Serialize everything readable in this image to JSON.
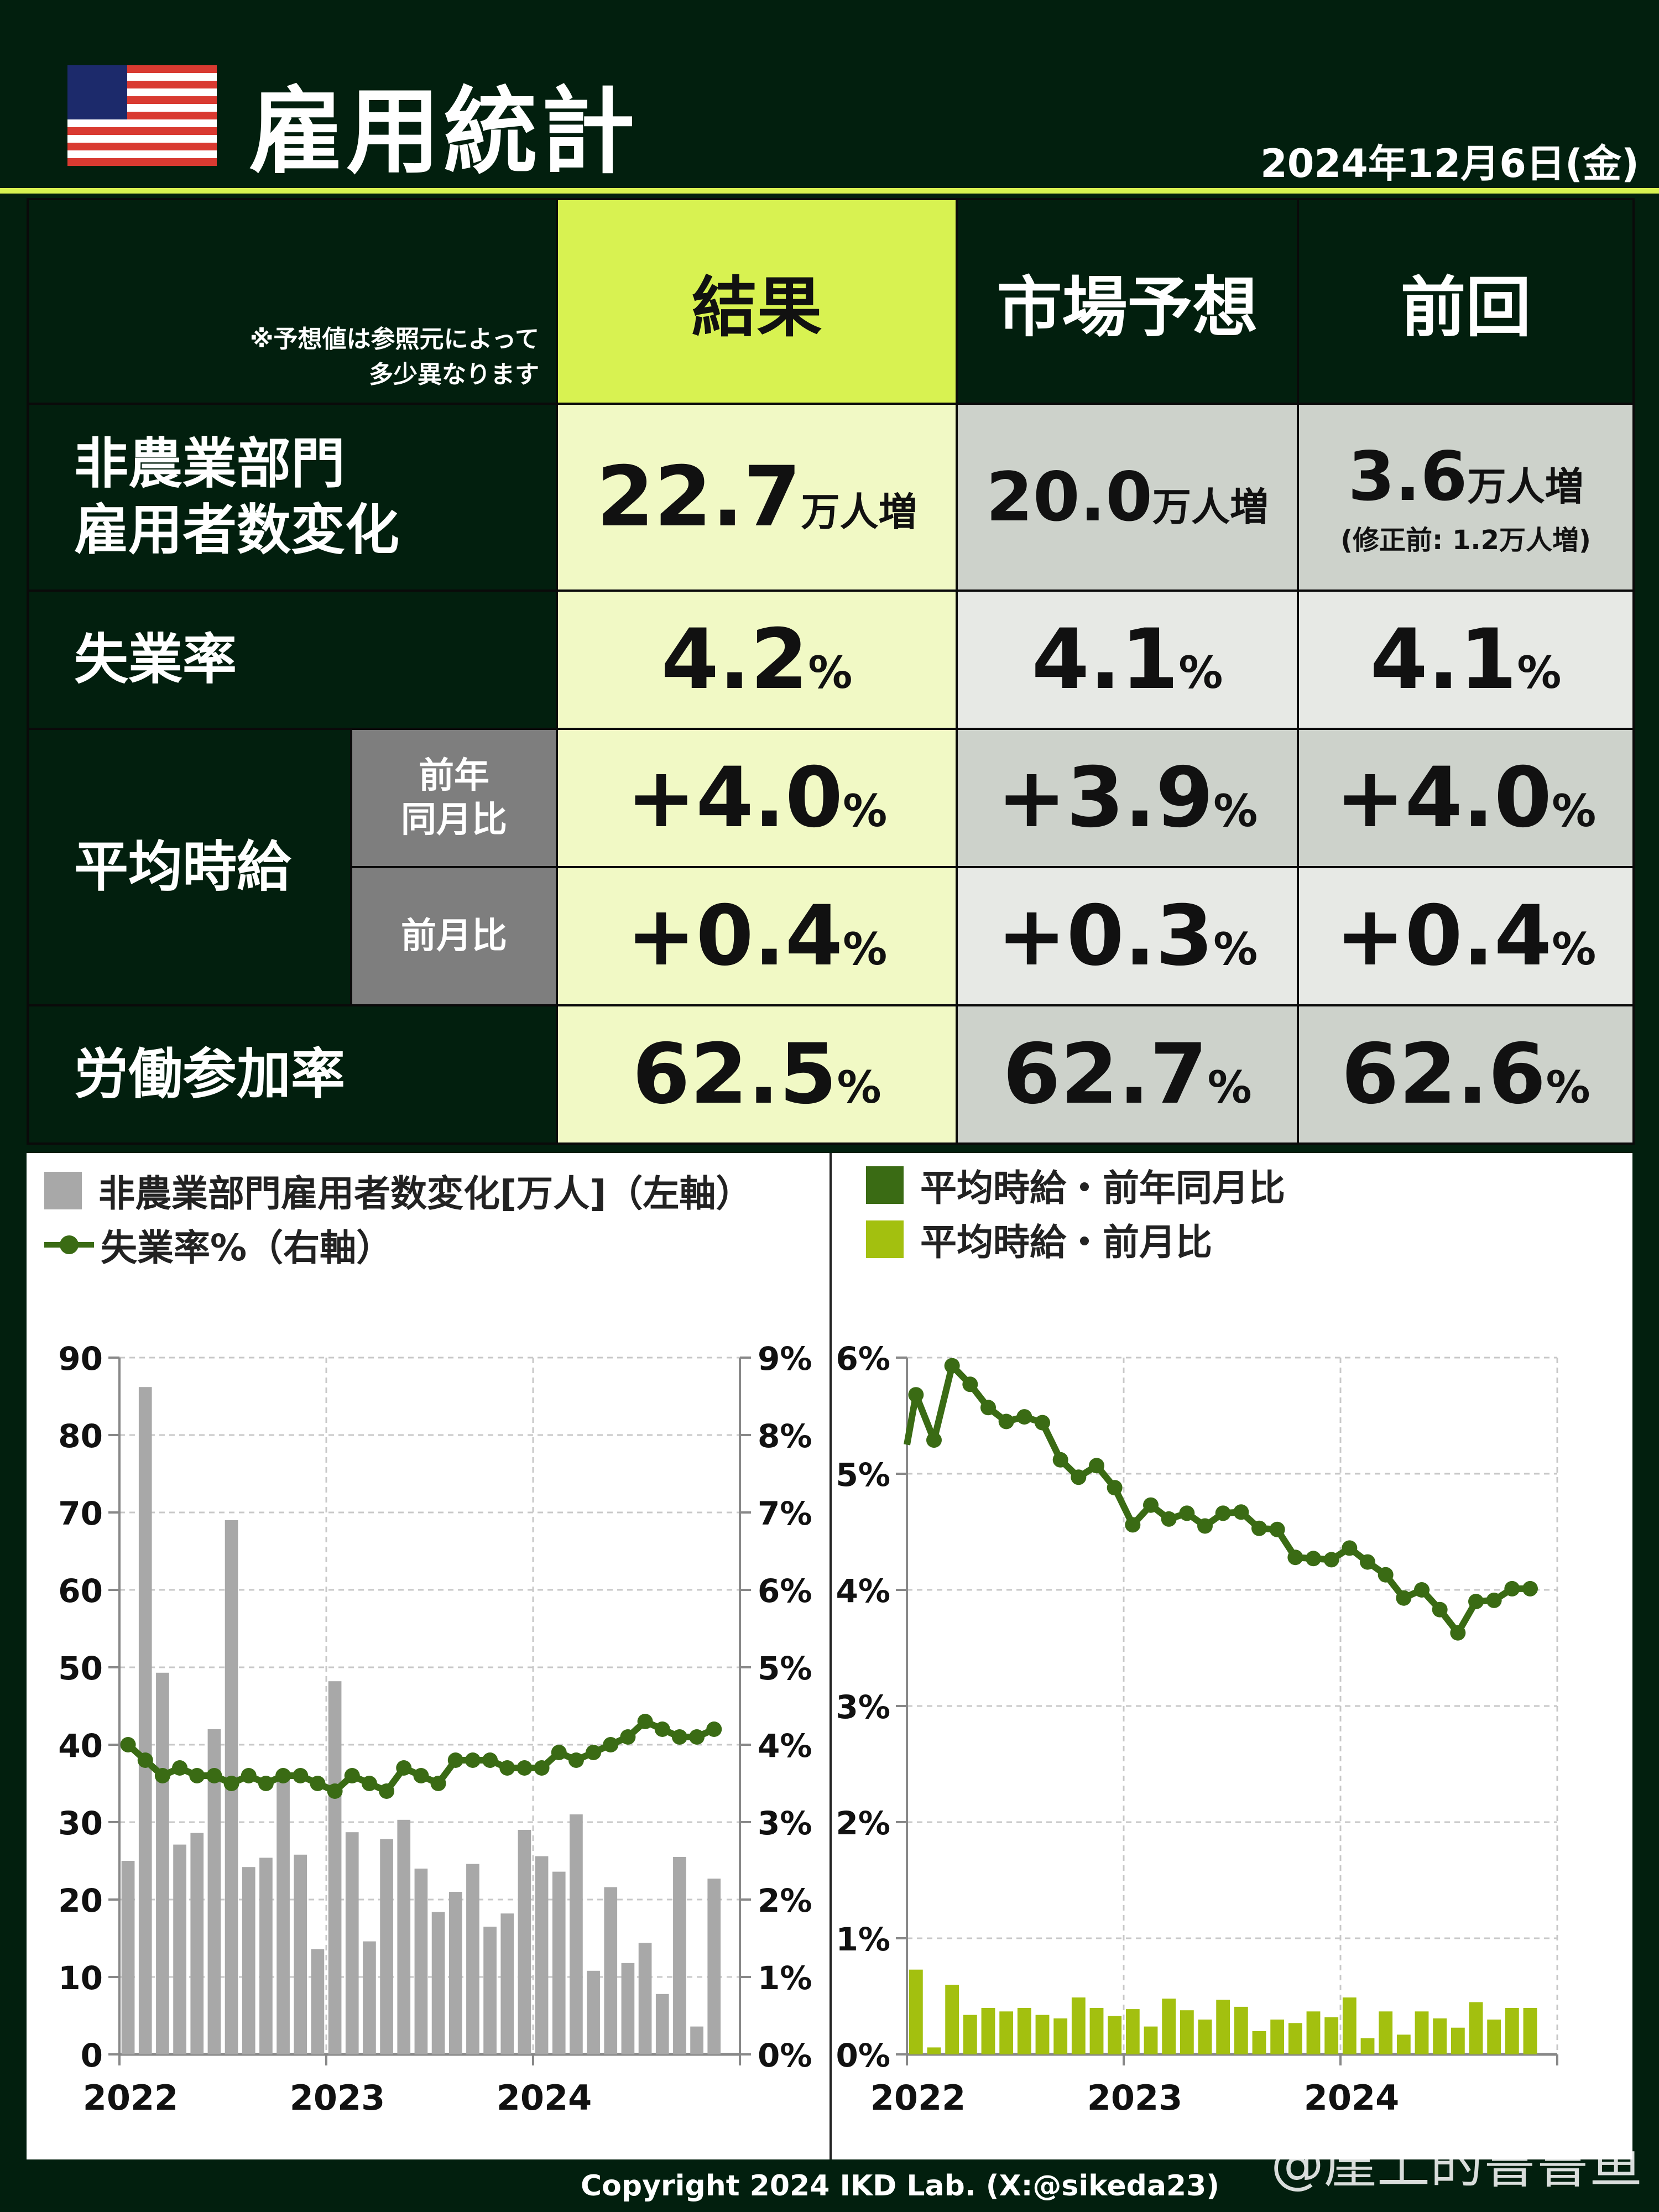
{
  "header": {
    "title": "雇用統計",
    "date": "2024年12月6日(金)",
    "flag": "us-flag-icon"
  },
  "table": {
    "note_line1": "※予想値は参照元によって",
    "note_line2": "多少異なります",
    "columns": [
      "結果",
      "市場予想",
      "前回"
    ],
    "rows": {
      "nfp": {
        "label_line1": "非農業部門",
        "label_line2": "雇用者数変化",
        "result": {
          "value": "22.7",
          "unit": "万人増"
        },
        "forecast": {
          "value": "20.0",
          "unit": "万人増"
        },
        "previous": {
          "value": "3.6",
          "unit": "万人増",
          "revision": "(修正前: 1.2万人増)"
        }
      },
      "unemployment": {
        "label": "失業率",
        "result": {
          "value": "4.2",
          "unit": "%"
        },
        "forecast": {
          "value": "4.1",
          "unit": "%"
        },
        "previous": {
          "value": "4.1",
          "unit": "%"
        }
      },
      "earnings": {
        "label": "平均時給",
        "yoy": {
          "label_line1": "前年",
          "label_line2": "同月比",
          "result": {
            "value": "+4.0",
            "unit": "%"
          },
          "forecast": {
            "value": "+3.9",
            "unit": "%"
          },
          "previous": {
            "value": "+4.0",
            "unit": "%"
          }
        },
        "mom": {
          "label": "前月比",
          "result": {
            "value": "+0.4",
            "unit": "%"
          },
          "forecast": {
            "value": "+0.3",
            "unit": "%"
          },
          "previous": {
            "value": "+0.4",
            "unit": "%"
          }
        }
      },
      "participation": {
        "label": "労働参加率",
        "result": {
          "value": "62.5",
          "unit": "%"
        },
        "forecast": {
          "value": "62.7",
          "unit": "%"
        },
        "previous": {
          "value": "62.6",
          "unit": "%"
        }
      }
    }
  },
  "colors": {
    "background": "#021f0e",
    "accent": "#d8f251",
    "result_cell": "#f1f9c5",
    "gray_cell": "#cdd2cb",
    "light_cell": "#e7e9e5",
    "bar_gray": "#a8a8a8",
    "line_green": "#3a6b14",
    "bar_lime": "#a3c00f"
  },
  "chart_data": [
    {
      "type": "bar+line",
      "title": "",
      "legend": [
        {
          "label": "非農業部門雇用者数変化[万人]（左軸）",
          "marker": "square",
          "color": "#a8a8a8"
        },
        {
          "label": "失業率%（右軸）",
          "marker": "line-dot",
          "color": "#3a6b14"
        }
      ],
      "x_tick_labels": [
        "2022",
        "2023",
        "2024"
      ],
      "y_left": {
        "ticks": [
          "0",
          "10",
          "20",
          "30",
          "40",
          "50",
          "60",
          "70",
          "80",
          "90"
        ],
        "range": [
          0,
          90
        ]
      },
      "y_right": {
        "ticks": [
          "0%",
          "1%",
          "2%",
          "3%",
          "4%",
          "5%",
          "6%",
          "7%",
          "8%",
          "9%"
        ],
        "range": [
          0,
          9
        ]
      },
      "grid": true,
      "categories": [
        "2022-01",
        "2022-02",
        "2022-03",
        "2022-04",
        "2022-05",
        "2022-06",
        "2022-07",
        "2022-08",
        "2022-09",
        "2022-10",
        "2022-11",
        "2022-12",
        "2023-01",
        "2023-02",
        "2023-03",
        "2023-04",
        "2023-05",
        "2023-06",
        "2023-07",
        "2023-08",
        "2023-09",
        "2023-10",
        "2023-11",
        "2023-12",
        "2024-01",
        "2024-02",
        "2024-03",
        "2024-04",
        "2024-05",
        "2024-06",
        "2024-07",
        "2024-08",
        "2024-09",
        "2024-10",
        "2024-11"
      ],
      "series": [
        {
          "name": "非農業部門雇用者数変化[万人]",
          "axis": "left",
          "type": "bar",
          "values": [
            25.0,
            86.2,
            49.3,
            27.1,
            28.6,
            42.0,
            69.0,
            24.2,
            25.4,
            35.8,
            25.8,
            13.6,
            48.2,
            28.7,
            14.6,
            27.8,
            30.3,
            24.0,
            18.4,
            21.0,
            24.6,
            16.5,
            18.2,
            29.0,
            25.6,
            23.6,
            31.0,
            10.8,
            21.6,
            11.8,
            14.4,
            7.8,
            25.5,
            3.6,
            22.7
          ]
        },
        {
          "name": "失業率%",
          "axis": "right",
          "type": "line",
          "values": [
            4.0,
            3.8,
            3.6,
            3.7,
            3.6,
            3.6,
            3.5,
            3.6,
            3.5,
            3.6,
            3.6,
            3.5,
            3.4,
            3.6,
            3.5,
            3.4,
            3.7,
            3.6,
            3.5,
            3.8,
            3.8,
            3.8,
            3.7,
            3.7,
            3.7,
            3.9,
            3.8,
            3.9,
            4.0,
            4.1,
            4.3,
            4.2,
            4.1,
            4.1,
            4.2
          ]
        }
      ]
    },
    {
      "type": "bar+line",
      "title": "",
      "legend": [
        {
          "label": "平均時給・前年同月比",
          "marker": "square",
          "color": "#3a6b14"
        },
        {
          "label": "平均時給・前月比",
          "marker": "square",
          "color": "#a3c00f"
        }
      ],
      "x_tick_labels": [
        "2022",
        "2023",
        "2024"
      ],
      "y": {
        "ticks": [
          "0%",
          "1%",
          "2%",
          "3%",
          "4%",
          "5%",
          "6%"
        ],
        "range": [
          0,
          6
        ]
      },
      "grid": true,
      "categories": [
        "2022-01",
        "2022-02",
        "2022-03",
        "2022-04",
        "2022-05",
        "2022-06",
        "2022-07",
        "2022-08",
        "2022-09",
        "2022-10",
        "2022-11",
        "2022-12",
        "2023-01",
        "2023-02",
        "2023-03",
        "2023-04",
        "2023-05",
        "2023-06",
        "2023-07",
        "2023-08",
        "2023-09",
        "2023-10",
        "2023-11",
        "2023-12",
        "2024-01",
        "2024-02",
        "2024-03",
        "2024-04",
        "2024-05",
        "2024-06",
        "2024-07",
        "2024-08",
        "2024-09",
        "2024-10",
        "2024-11"
      ],
      "series": [
        {
          "name": "平均時給・前年同月比",
          "type": "line",
          "values": [
            5.68,
            5.29,
            5.93,
            5.77,
            5.57,
            5.45,
            5.49,
            5.44,
            5.12,
            4.97,
            5.07,
            4.88,
            4.56,
            4.73,
            4.61,
            4.66,
            4.55,
            4.66,
            4.67,
            4.53,
            4.52,
            4.28,
            4.27,
            4.26,
            4.36,
            4.24,
            4.13,
            3.93,
            4.0,
            3.83,
            3.63,
            3.9,
            3.91,
            4.01,
            4.01
          ]
        },
        {
          "name": "平均時給・前月比",
          "type": "bar",
          "values": [
            0.73,
            0.06,
            0.6,
            0.34,
            0.4,
            0.37,
            0.4,
            0.34,
            0.31,
            0.49,
            0.4,
            0.33,
            0.39,
            0.24,
            0.48,
            0.38,
            0.3,
            0.47,
            0.41,
            0.2,
            0.3,
            0.27,
            0.37,
            0.32,
            0.49,
            0.14,
            0.37,
            0.17,
            0.37,
            0.31,
            0.23,
            0.45,
            0.3,
            0.4,
            0.4
          ]
        }
      ],
      "line_start_value": 5.25
    }
  ],
  "footer": {
    "copyright": "Copyright 2024 IKD Lab. (X:@sikeda23)",
    "watermark": "@崖上的鲁鲁鱼"
  }
}
